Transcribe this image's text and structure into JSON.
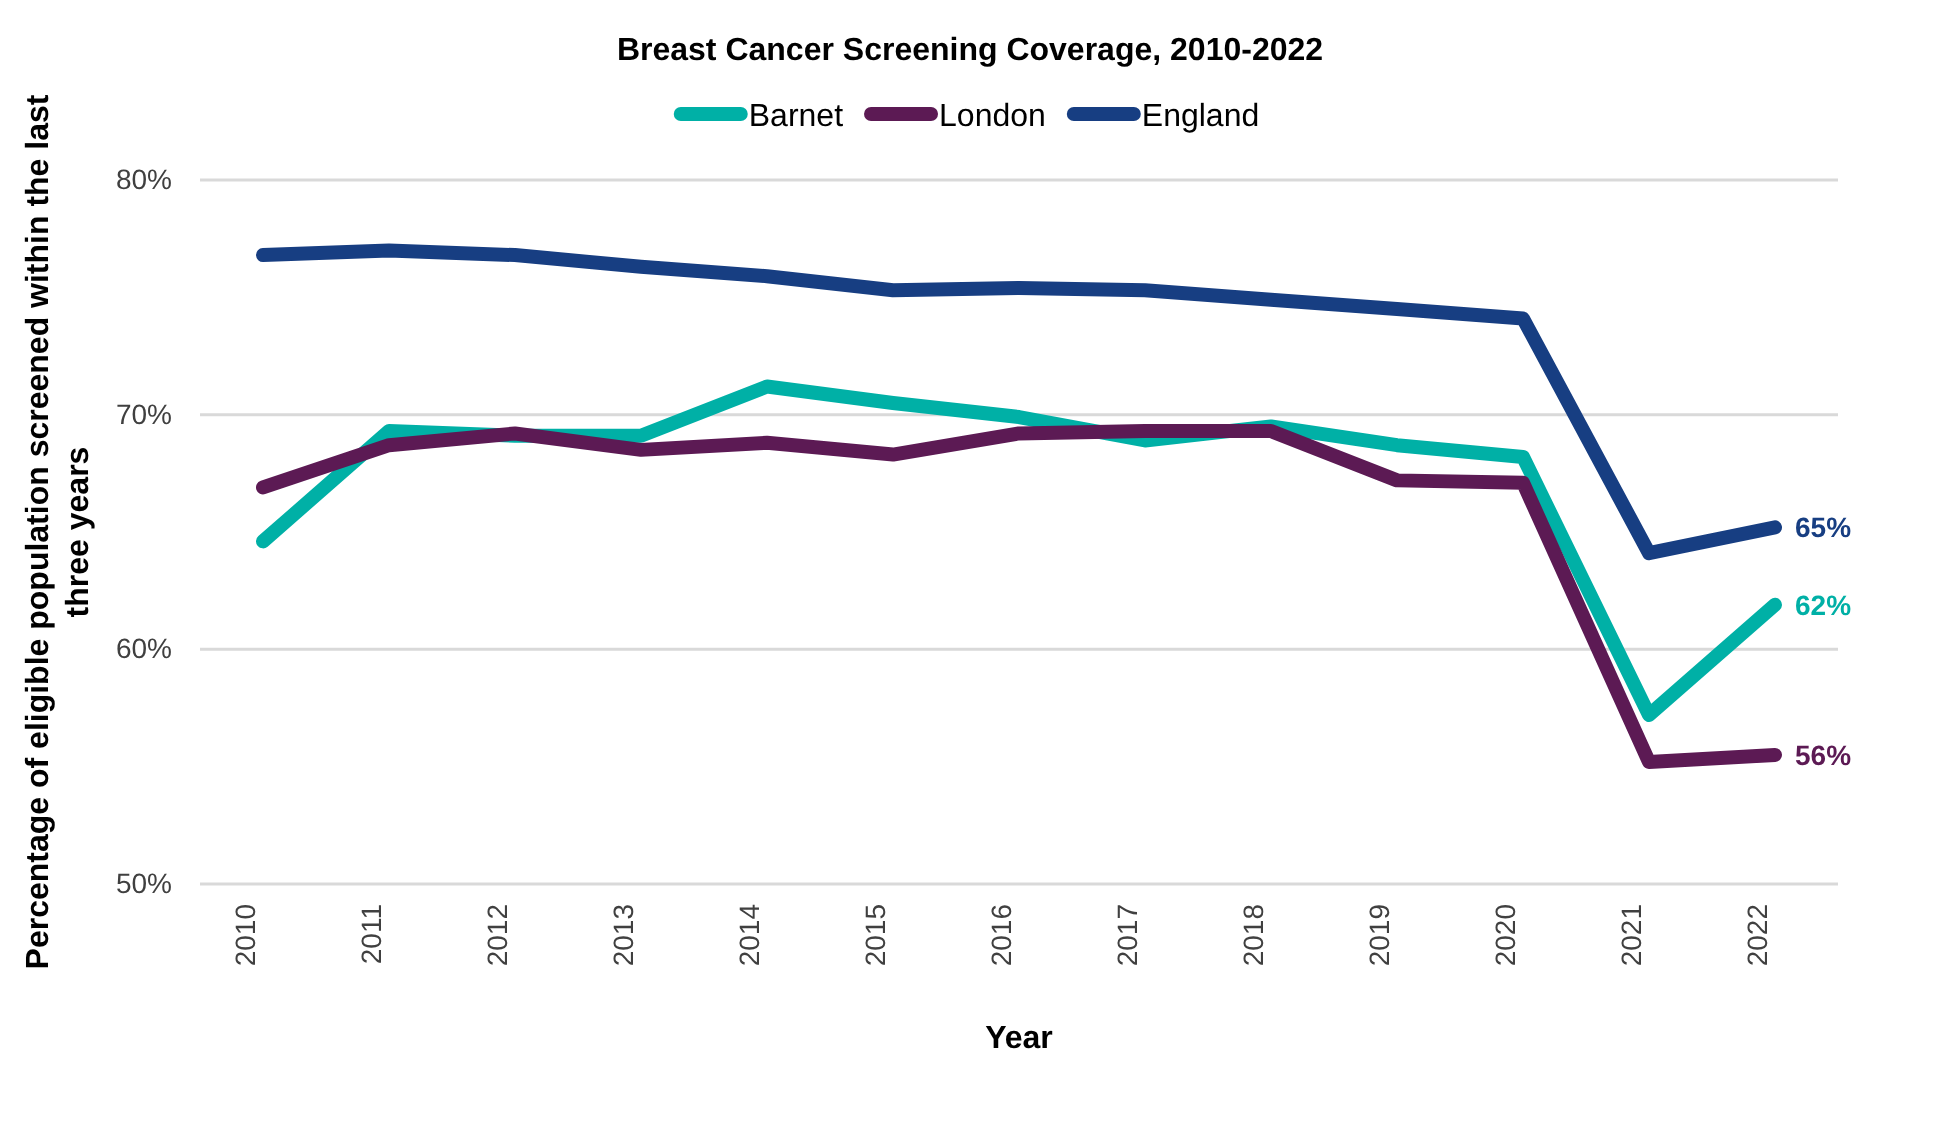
{
  "chart_data": {
    "type": "line",
    "title": "Breast Cancer Screening Coverage, 2010-2022",
    "xlabel": "Year",
    "ylabel": "Percentage of eligible population screened within the last three years",
    "categories": [
      "2010",
      "2011",
      "2012",
      "2013",
      "2014",
      "2015",
      "2016",
      "2017",
      "2018",
      "2019",
      "2020",
      "2021",
      "2022"
    ],
    "series": [
      {
        "name": "Barnet",
        "color": "#00b0a6",
        "values": [
          64.6,
          69.3,
          69.1,
          69.1,
          71.2,
          70.5,
          69.9,
          68.9,
          69.5,
          68.7,
          68.2,
          57.2,
          61.9
        ],
        "value_labels": [
          null,
          null,
          null,
          null,
          null,
          null,
          null,
          null,
          null,
          null,
          null,
          null,
          "62%"
        ]
      },
      {
        "name": "London",
        "color": "#5c1a54",
        "values": [
          66.9,
          68.7,
          69.2,
          68.5,
          68.8,
          68.3,
          69.2,
          69.3,
          69.3,
          67.2,
          67.1,
          55.2,
          55.5
        ],
        "value_labels": [
          null,
          null,
          null,
          null,
          null,
          null,
          null,
          null,
          null,
          null,
          null,
          null,
          "56%"
        ]
      },
      {
        "name": "England",
        "color": "#173e82",
        "values": [
          76.8,
          77.0,
          76.8,
          76.3,
          75.9,
          75.3,
          75.4,
          75.3,
          74.9,
          74.5,
          74.1,
          64.1,
          65.2
        ],
        "value_labels": [
          null,
          null,
          null,
          null,
          null,
          null,
          null,
          null,
          null,
          null,
          null,
          null,
          "65%"
        ]
      }
    ],
    "ylim": [
      50,
      80
    ],
    "yticks": [
      {
        "value": 50,
        "label": "50%"
      },
      {
        "value": 60,
        "label": "60%"
      },
      {
        "value": 70,
        "label": "70%"
      },
      {
        "value": 80,
        "label": "80%"
      }
    ],
    "grid": "y",
    "legend": "top",
    "marker": "none",
    "line_style": "solid"
  }
}
